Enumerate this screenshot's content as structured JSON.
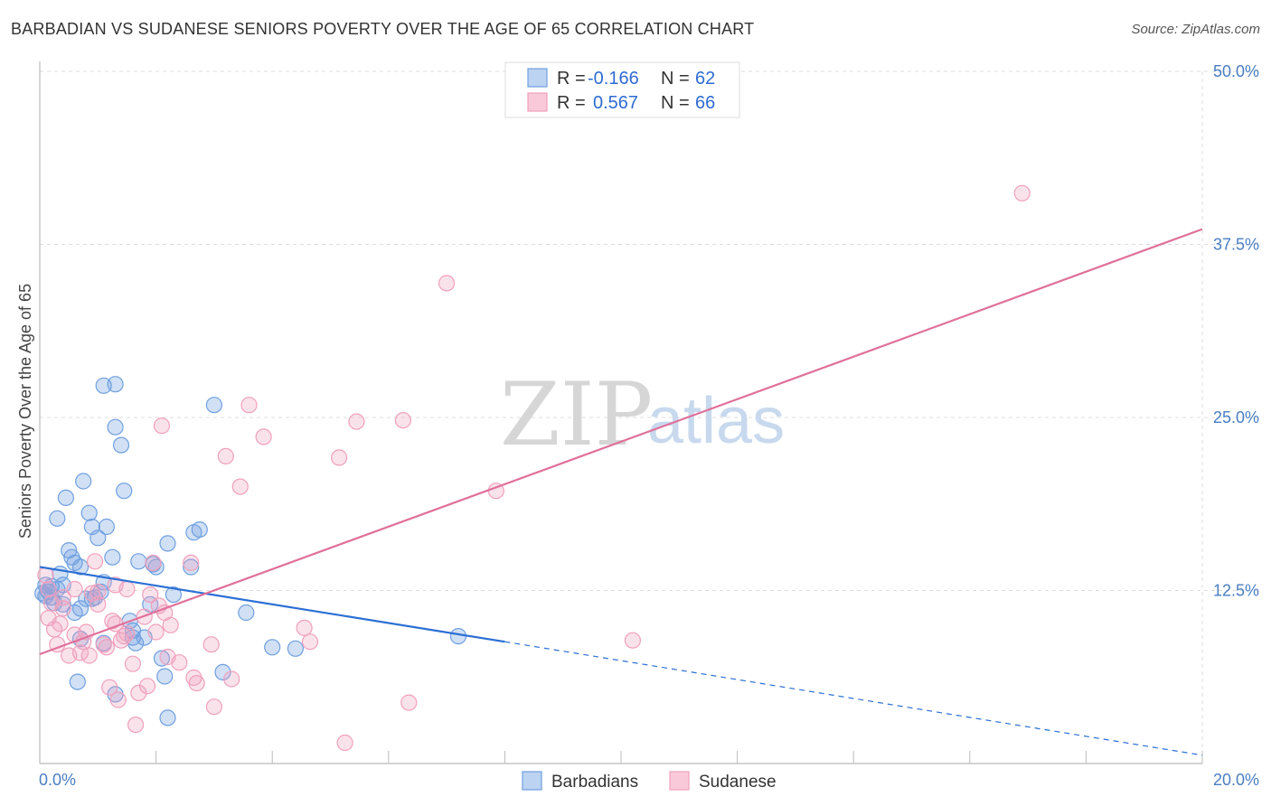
{
  "title": "BARBADIAN VS SUDANESE SENIORS POVERTY OVER THE AGE OF 65 CORRELATION CHART",
  "source": "Source: ZipAtlas.com",
  "watermark": {
    "zip": "ZIP",
    "atlas": "atlas"
  },
  "colors": {
    "blue": "#6fa0e0",
    "pink": "#f0a0bc",
    "blue_line": "#2b6fd4",
    "pink_line": "#e0709a",
    "grid": "#dddddd"
  },
  "legend": {
    "rows": [
      {
        "r_label": "R =",
        "r_value": "-0.166",
        "n_label": "N =",
        "n_value": "62"
      },
      {
        "r_label": "R =",
        "r_value": "0.567",
        "n_label": "N =",
        "n_value": "66"
      }
    ],
    "bottom": [
      "Barbadians",
      "Sudanese"
    ]
  },
  "chart_data": {
    "type": "scatter",
    "ylabel": "Seniors Poverty Over the Age of 65",
    "xlim": [
      0,
      20
    ],
    "ylim": [
      0,
      50
    ],
    "x_ticks": [
      {
        "value": 0,
        "label": "0.0%"
      },
      {
        "value": 20,
        "label": "20.0%"
      }
    ],
    "y_ticks": [
      {
        "value": 12.5,
        "label": "12.5%"
      },
      {
        "value": 25,
        "label": "25.0%"
      },
      {
        "value": 37.5,
        "label": "37.5%"
      },
      {
        "value": 50,
        "label": "50.0%"
      }
    ],
    "series": [
      {
        "name": "Barbadians",
        "color": "#6fa0e0",
        "trend": {
          "x0": 0,
          "y0": 14.2,
          "x1": 8,
          "y1": 8.8,
          "dashed_to_x": 20,
          "dashed_to_y": 0.6
        },
        "points": [
          [
            0.1,
            12.9
          ],
          [
            0.1,
            12.1
          ],
          [
            0.15,
            12.4
          ],
          [
            0.2,
            12.8
          ],
          [
            0.25,
            11.6
          ],
          [
            0.3,
            12.6
          ],
          [
            0.35,
            13.7
          ],
          [
            0.4,
            12.9
          ],
          [
            0.3,
            17.7
          ],
          [
            0.45,
            19.2
          ],
          [
            0.5,
            15.4
          ],
          [
            0.55,
            14.9
          ],
          [
            0.6,
            14.5
          ],
          [
            0.6,
            10.9
          ],
          [
            0.7,
            11.2
          ],
          [
            0.7,
            14.2
          ],
          [
            0.7,
            9.0
          ],
          [
            0.65,
            5.9
          ],
          [
            0.75,
            20.4
          ],
          [
            0.8,
            11.9
          ],
          [
            0.85,
            18.1
          ],
          [
            0.9,
            11.9
          ],
          [
            0.9,
            17.1
          ],
          [
            0.95,
            12.0
          ],
          [
            1.0,
            16.3
          ],
          [
            1.05,
            12.4
          ],
          [
            1.1,
            13.1
          ],
          [
            1.15,
            17.1
          ],
          [
            1.1,
            8.7
          ],
          [
            1.1,
            27.3
          ],
          [
            1.3,
            27.4
          ],
          [
            1.3,
            24.3
          ],
          [
            1.25,
            14.9
          ],
          [
            1.3,
            5.0
          ],
          [
            1.4,
            23.0
          ],
          [
            1.45,
            19.7
          ],
          [
            1.55,
            10.3
          ],
          [
            1.6,
            9.6
          ],
          [
            1.6,
            9.1
          ],
          [
            1.65,
            8.7
          ],
          [
            1.7,
            14.6
          ],
          [
            1.8,
            9.1
          ],
          [
            1.9,
            11.5
          ],
          [
            1.95,
            14.4
          ],
          [
            2.0,
            14.2
          ],
          [
            2.1,
            7.6
          ],
          [
            2.15,
            6.3
          ],
          [
            2.2,
            3.3
          ],
          [
            2.2,
            15.9
          ],
          [
            2.3,
            12.2
          ],
          [
            2.6,
            14.2
          ],
          [
            2.65,
            16.7
          ],
          [
            2.75,
            16.9
          ],
          [
            3.0,
            25.9
          ],
          [
            3.15,
            6.6
          ],
          [
            3.55,
            10.9
          ],
          [
            4.0,
            8.4
          ],
          [
            4.4,
            8.3
          ],
          [
            7.2,
            9.2
          ],
          [
            0.05,
            12.3
          ],
          [
            0.2,
            12.0
          ],
          [
            0.4,
            11.5
          ]
        ]
      },
      {
        "name": "Sudanese",
        "color": "#f0a0bc",
        "trend": {
          "x0": 0,
          "y0": 7.9,
          "x1": 20,
          "y1": 38.6
        },
        "points": [
          [
            0.1,
            13.6
          ],
          [
            0.15,
            12.6
          ],
          [
            0.15,
            10.5
          ],
          [
            0.2,
            11.6
          ],
          [
            0.25,
            9.7
          ],
          [
            0.3,
            8.6
          ],
          [
            0.35,
            10.1
          ],
          [
            0.4,
            12.0
          ],
          [
            0.4,
            11.2
          ],
          [
            0.5,
            7.8
          ],
          [
            0.6,
            9.3
          ],
          [
            0.6,
            12.6
          ],
          [
            0.7,
            8.0
          ],
          [
            0.75,
            8.8
          ],
          [
            0.8,
            9.5
          ],
          [
            0.85,
            7.8
          ],
          [
            0.9,
            12.3
          ],
          [
            0.95,
            14.6
          ],
          [
            1.0,
            12.4
          ],
          [
            1.0,
            11.5
          ],
          [
            1.1,
            8.6
          ],
          [
            1.15,
            8.4
          ],
          [
            1.2,
            5.5
          ],
          [
            1.25,
            10.3
          ],
          [
            1.3,
            10.1
          ],
          [
            1.3,
            12.9
          ],
          [
            1.35,
            4.6
          ],
          [
            1.4,
            8.9
          ],
          [
            1.45,
            9.2
          ],
          [
            1.5,
            9.4
          ],
          [
            1.5,
            12.6
          ],
          [
            1.6,
            7.2
          ],
          [
            1.65,
            2.8
          ],
          [
            1.7,
            5.1
          ],
          [
            1.8,
            10.6
          ],
          [
            1.85,
            5.6
          ],
          [
            1.9,
            12.2
          ],
          [
            1.95,
            14.5
          ],
          [
            2.0,
            9.5
          ],
          [
            2.05,
            11.4
          ],
          [
            2.1,
            24.4
          ],
          [
            2.15,
            10.9
          ],
          [
            2.2,
            7.7
          ],
          [
            2.25,
            10.0
          ],
          [
            2.4,
            7.3
          ],
          [
            2.6,
            14.5
          ],
          [
            2.65,
            6.2
          ],
          [
            2.7,
            5.8
          ],
          [
            2.95,
            8.6
          ],
          [
            3.0,
            4.1
          ],
          [
            3.2,
            22.2
          ],
          [
            3.3,
            6.1
          ],
          [
            3.45,
            20.0
          ],
          [
            3.6,
            25.9
          ],
          [
            3.85,
            23.6
          ],
          [
            4.55,
            9.8
          ],
          [
            4.65,
            8.8
          ],
          [
            5.15,
            22.1
          ],
          [
            5.25,
            1.5
          ],
          [
            5.45,
            24.7
          ],
          [
            6.25,
            24.8
          ],
          [
            6.35,
            4.4
          ],
          [
            7.0,
            34.7
          ],
          [
            7.85,
            19.7
          ],
          [
            10.2,
            8.9
          ],
          [
            16.9,
            41.2
          ]
        ]
      }
    ]
  }
}
